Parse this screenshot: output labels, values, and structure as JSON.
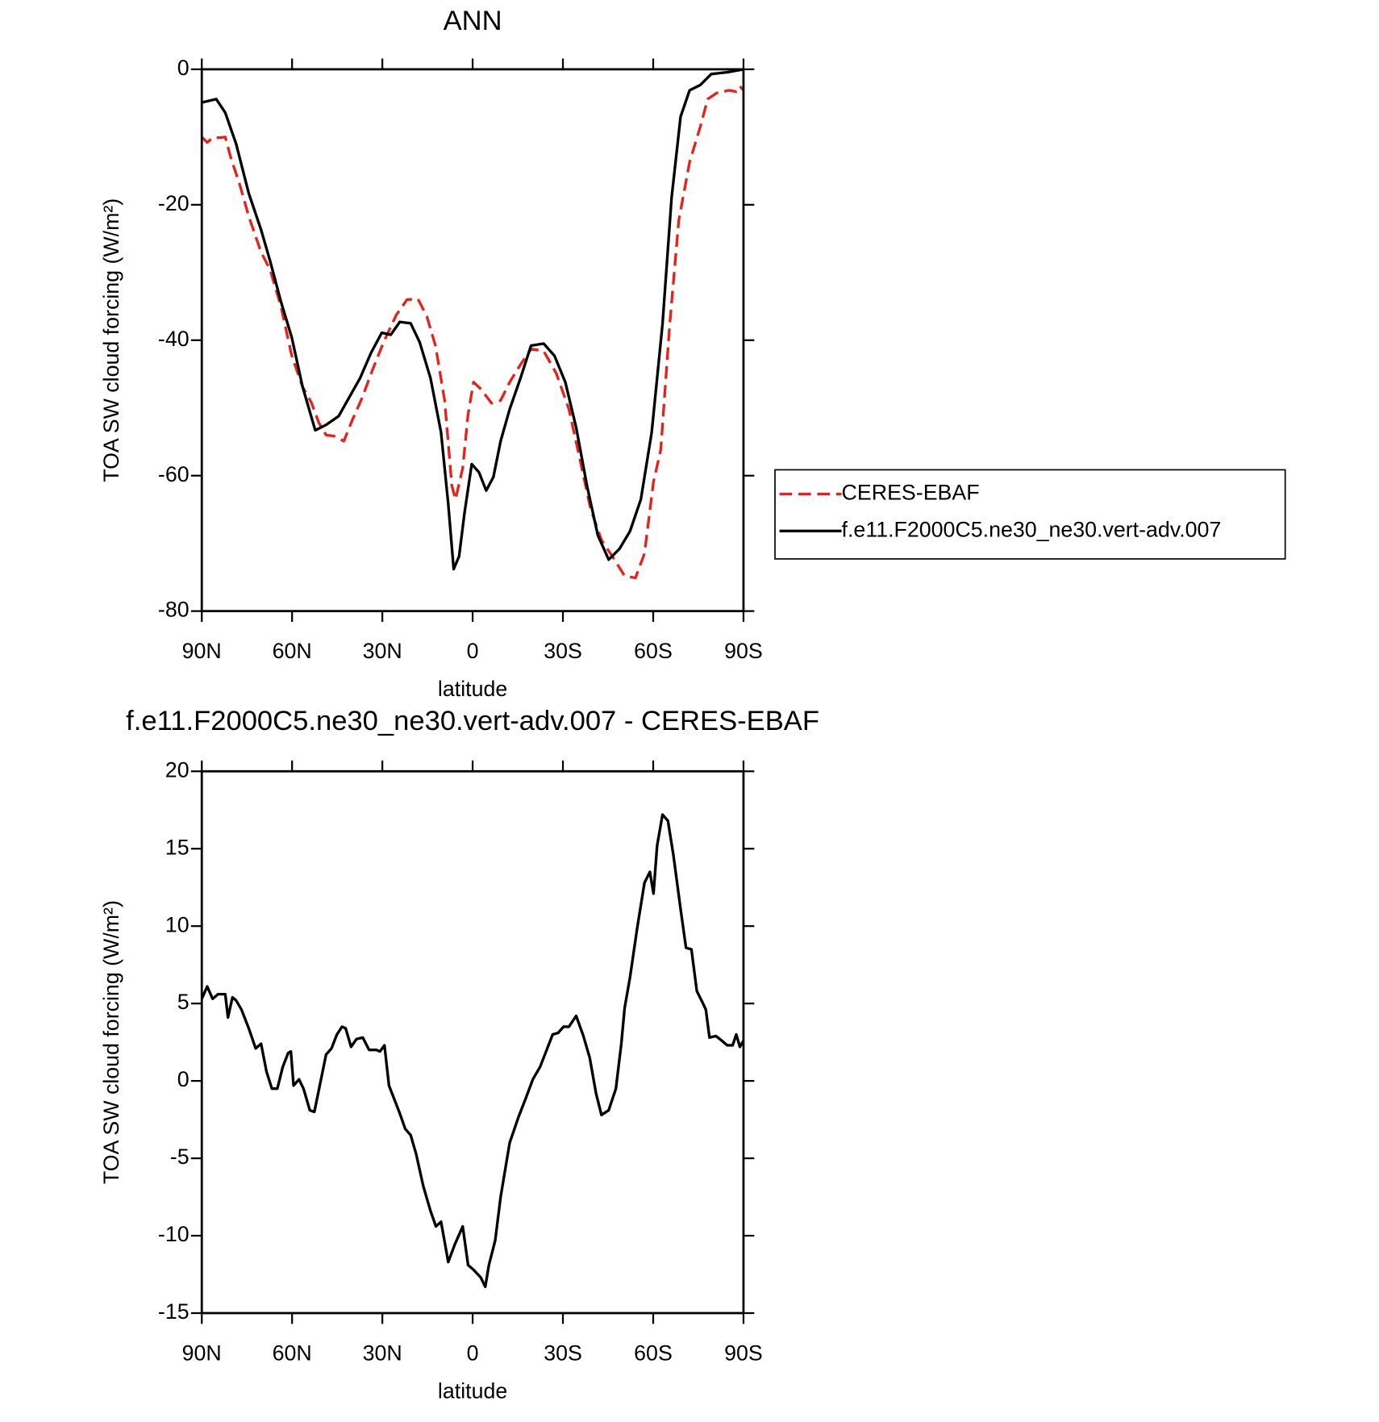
{
  "chart_data": [
    {
      "type": "line",
      "title": "ANN",
      "xlabel": "latitude",
      "ylabel": "TOA SW cloud forcing (W/m²)",
      "xlim": [
        90,
        -90
      ],
      "xticks": [
        {
          "value": 90,
          "label": "90N"
        },
        {
          "value": 60,
          "label": "60N"
        },
        {
          "value": 30,
          "label": "30N"
        },
        0,
        {
          "value": -30,
          "label": "30S"
        },
        {
          "value": -60,
          "label": "60S"
        },
        {
          "value": -90,
          "label": "90S"
        }
      ],
      "ylim": [
        -80,
        0
      ],
      "yticks": [
        0,
        -20,
        -40,
        -60,
        -80
      ],
      "legend": "right",
      "series": [
        {
          "name": "CERES-EBAF",
          "color": "#e8211d",
          "dash": true,
          "x": [
            90,
            88.2,
            86.4,
            84.0,
            82.2,
            80.4,
            77.4,
            74.4,
            70.3,
            67.3,
            63.7,
            60.1,
            56.5,
            53.5,
            51.1,
            48.7,
            45.7,
            42.8,
            39.8,
            36.8,
            33.2,
            29.6,
            25.4,
            21.8,
            18.2,
            15.2,
            12.3,
            9.3,
            6.9,
            5.7,
            3.3,
            1.5,
            -0.3,
            -2.7,
            -6.3,
            -9.3,
            -12.3,
            -15.9,
            -19.4,
            -23.6,
            -27.8,
            -32.0,
            -35.6,
            -39.2,
            -42.8,
            -46.4,
            -50.5,
            -54.1,
            -57.1,
            -60.1,
            -62.5,
            -65.5,
            -68.5,
            -72.1,
            -75.7,
            -78.1,
            -81.1,
            -85.2,
            -87.6,
            -88.8,
            -90
          ],
          "values": [
            -10.0,
            -10.8,
            -10.1,
            -10.1,
            -10.0,
            -13.0,
            -17.0,
            -21.7,
            -27.0,
            -29.6,
            -35.0,
            -42.3,
            -46.9,
            -49.3,
            -52.2,
            -54.0,
            -54.2,
            -54.9,
            -51.6,
            -48.6,
            -44.3,
            -40.3,
            -36.3,
            -34.0,
            -33.9,
            -36.5,
            -40.9,
            -48.9,
            -61.5,
            -63.5,
            -58.9,
            -50.9,
            -46.2,
            -47.2,
            -49.3,
            -48.9,
            -46.2,
            -43.6,
            -41.3,
            -41.6,
            -44.9,
            -50.2,
            -57.5,
            -64.9,
            -69.5,
            -71.9,
            -74.8,
            -75.1,
            -71.5,
            -60.9,
            -56.2,
            -37.6,
            -22.3,
            -13.7,
            -8.4,
            -4.4,
            -3.5,
            -3.1,
            -3.3,
            -2.5,
            -3.1
          ]
        },
        {
          "name": "f.e11.F2000C5.ne30_ne30.vert-adv.007",
          "color": "#000000",
          "dash": false,
          "x": [
            90,
            85.2,
            82.2,
            78.6,
            74.4,
            70.3,
            67.3,
            63.7,
            60.1,
            56.5,
            52.3,
            48.7,
            44.5,
            41.6,
            37.4,
            33.8,
            30.2,
            27.2,
            24.2,
            20.6,
            17.6,
            14.0,
            10.5,
            8.1,
            6.3,
            4.5,
            2.7,
            0.3,
            -2.1,
            -4.5,
            -6.9,
            -9.3,
            -12.3,
            -15.9,
            -19.4,
            -23.6,
            -27.2,
            -30.8,
            -34.4,
            -38.0,
            -41.6,
            -45.2,
            -48.8,
            -52.3,
            -55.9,
            -59.5,
            -63.1,
            -66.1,
            -69.1,
            -72.1,
            -75.7,
            -79.3,
            -85.2,
            -90
          ],
          "values": [
            -4.9,
            -4.4,
            -6.4,
            -11.0,
            -18.3,
            -23.7,
            -28.3,
            -34.3,
            -39.6,
            -46.9,
            -53.3,
            -52.5,
            -51.2,
            -48.9,
            -45.6,
            -41.9,
            -38.9,
            -39.2,
            -37.3,
            -37.5,
            -40.3,
            -45.6,
            -53.6,
            -64.2,
            -73.8,
            -71.9,
            -65.5,
            -58.3,
            -59.5,
            -62.2,
            -60.2,
            -54.9,
            -50.2,
            -45.6,
            -40.8,
            -40.5,
            -42.3,
            -46.2,
            -52.9,
            -61.5,
            -68.8,
            -72.4,
            -70.8,
            -68.2,
            -63.5,
            -53.6,
            -37.6,
            -19.0,
            -7.0,
            -3.1,
            -2.3,
            -0.7,
            -0.4,
            0
          ]
        }
      ]
    },
    {
      "type": "line",
      "title": "f.e11.F2000C5.ne30_ne30.vert-adv.007 - CERES-EBAF",
      "xlabel": "latitude",
      "ylabel": "TOA SW cloud forcing (W/m²)",
      "xlim": [
        90,
        -90
      ],
      "xticks": [
        {
          "value": 90,
          "label": "90N"
        },
        {
          "value": 60,
          "label": "60N"
        },
        {
          "value": 30,
          "label": "30N"
        },
        0,
        {
          "value": -30,
          "label": "30S"
        },
        {
          "value": -60,
          "label": "60S"
        },
        {
          "value": -90,
          "label": "90S"
        }
      ],
      "ylim": [
        -15,
        20
      ],
      "yticks": [
        20,
        15,
        10,
        5,
        0,
        -5,
        -10,
        -15
      ],
      "series": [
        {
          "color": "#000000",
          "dash": false,
          "x": [
            90,
            88.2,
            86.4,
            84.6,
            82.2,
            81.3,
            79.8,
            78.6,
            76.8,
            74.4,
            72.1,
            70.3,
            68.5,
            66.7,
            64.9,
            63.1,
            61.3,
            60.4,
            59.5,
            57.7,
            56.2,
            54.1,
            52.6,
            50.8,
            48.7,
            46.9,
            45.1,
            43.4,
            42.2,
            40.4,
            38.6,
            36.5,
            34.4,
            32.0,
            30.8,
            29.3,
            27.8,
            26.0,
            24.2,
            22.4,
            20.6,
            18.8,
            16.4,
            14.0,
            12.2,
            10.5,
            8.1,
            6.0,
            3.3,
            1.5,
            -0.3,
            -2.7,
            -4.2,
            -5.4,
            -7.5,
            -9.3,
            -12.3,
            -15.3,
            -17.7,
            -20.0,
            -22.4,
            -24.2,
            -26.6,
            -28.4,
            -30.2,
            -32.0,
            -34.4,
            -36.8,
            -38.9,
            -41.0,
            -42.8,
            -45.2,
            -47.6,
            -49.4,
            -50.5,
            -52.3,
            -54.7,
            -57.1,
            -58.9,
            -60.1,
            -61.3,
            -63.1,
            -64.9,
            -66.7,
            -69.1,
            -70.9,
            -72.7,
            -74.5,
            -76.3,
            -77.5,
            -78.7,
            -80.8,
            -82.8,
            -84.6,
            -86.4,
            -87.6,
            -88.8,
            -90
          ],
          "values": [
            5.3,
            6.1,
            5.3,
            5.6,
            5.6,
            4.1,
            5.4,
            5.2,
            4.6,
            3.4,
            2.1,
            2.4,
            0.6,
            -0.5,
            -0.5,
            0.9,
            1.8,
            1.9,
            -0.3,
            0.1,
            -0.5,
            -1.9,
            -2.0,
            -0.3,
            1.7,
            2.1,
            3.0,
            3.5,
            3.4,
            2.2,
            2.7,
            2.8,
            2.0,
            2.0,
            1.9,
            2.3,
            -0.3,
            -1.2,
            -2.1,
            -3.1,
            -3.5,
            -4.7,
            -6.8,
            -8.4,
            -9.4,
            -9.1,
            -11.7,
            -10.6,
            -9.4,
            -11.9,
            -12.2,
            -12.7,
            -13.3,
            -11.9,
            -10.3,
            -7.5,
            -4.0,
            -2.3,
            -1.1,
            0.1,
            0.9,
            1.8,
            3.0,
            3.1,
            3.5,
            3.5,
            4.2,
            2.9,
            1.5,
            -0.8,
            -2.2,
            -1.9,
            -0.5,
            2.4,
            4.7,
            6.7,
            9.9,
            12.8,
            13.5,
            12.1,
            15.2,
            17.2,
            16.8,
            14.6,
            11.1,
            8.6,
            8.5,
            5.8,
            5.1,
            4.6,
            2.8,
            2.9,
            2.6,
            2.3,
            2.3,
            3.0,
            2.2,
            2.6
          ]
        }
      ]
    }
  ]
}
